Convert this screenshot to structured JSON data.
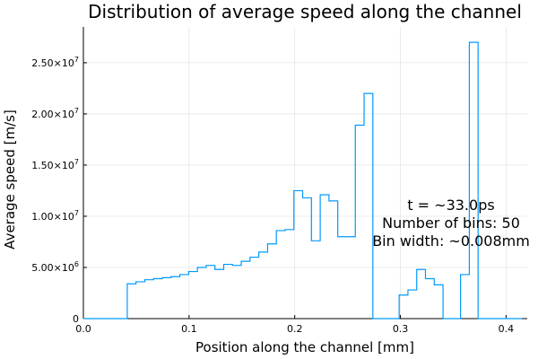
{
  "chart_data": {
    "type": "histogram-step",
    "title": "Distribution of average speed along the channel",
    "xlabel": "Position along the channel [mm]",
    "ylabel": "Average speed [m/s]",
    "xlim": [
      0.0,
      0.42
    ],
    "ylim": [
      0,
      28500000
    ],
    "x_ticks": [
      {
        "value": 0.0,
        "label": "0.0"
      },
      {
        "value": 0.1,
        "label": "0.1"
      },
      {
        "value": 0.2,
        "label": "0.2"
      },
      {
        "value": 0.3,
        "label": "0.3"
      },
      {
        "value": 0.4,
        "label": "0.4"
      }
    ],
    "y_ticks": [
      {
        "value": 0,
        "mantissa": "0",
        "exp": ""
      },
      {
        "value": 5000000,
        "mantissa": "5.00×10",
        "exp": "6"
      },
      {
        "value": 10000000,
        "mantissa": "1.00×10",
        "exp": "7"
      },
      {
        "value": 15000000,
        "mantissa": "1.50×10",
        "exp": "7"
      },
      {
        "value": 20000000,
        "mantissa": "2.00×10",
        "exp": "7"
      },
      {
        "value": 25000000,
        "mantissa": "2.50×10",
        "exp": "7"
      }
    ],
    "grid": true,
    "line_color": "#009AFA",
    "bin_edges_start": 0.0,
    "bin_width": 0.0083,
    "values": [
      0,
      0,
      0,
      0,
      0,
      3400000,
      3600000,
      3800000,
      3900000,
      4000000,
      4100000,
      4300000,
      4600000,
      5000000,
      5200000,
      4800000,
      5300000,
      5200000,
      5600000,
      6000000,
      6500000,
      7300000,
      8600000,
      8700000,
      12500000,
      11800000,
      7600000,
      12100000,
      11500000,
      8000000,
      8000000,
      18900000,
      22000000,
      0,
      0,
      0,
      2300000,
      2800000,
      4800000,
      3900000,
      3300000,
      0,
      0,
      4300000,
      27000000,
      0,
      0,
      0,
      0,
      0
    ],
    "annotation_lines": [
      "t = ~33.0ps",
      "Number of bins: 50",
      "Bin width: ~0.008mm"
    ]
  }
}
